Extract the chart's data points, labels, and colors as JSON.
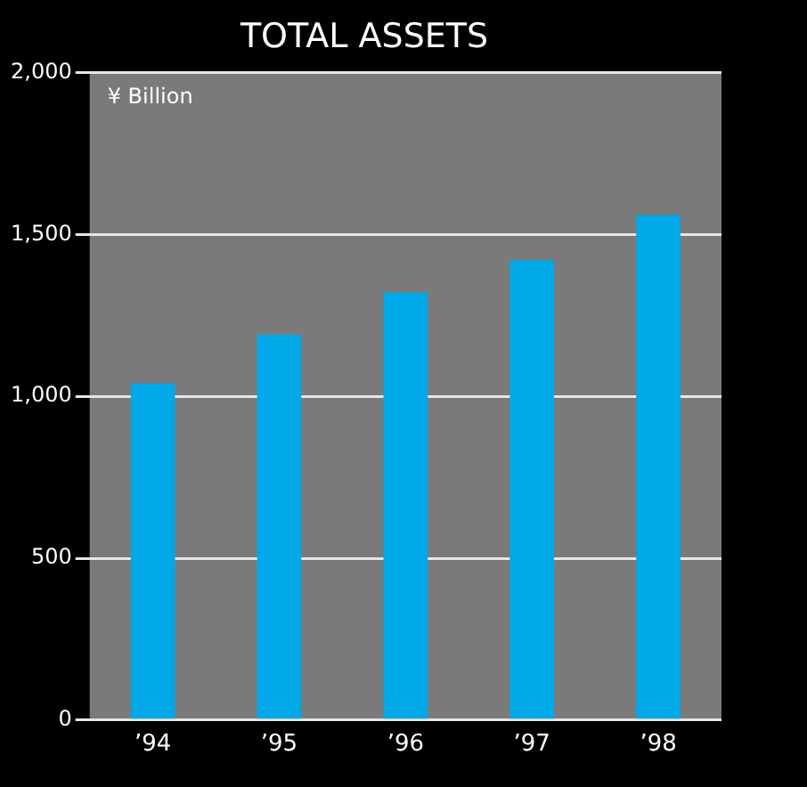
{
  "chart_data": {
    "type": "bar",
    "title": "TOTAL ASSETS",
    "ylabel": "¥ Billion",
    "categories": [
      "’94",
      "’95",
      "’96",
      "’97",
      "’98"
    ],
    "values": [
      1040,
      1190,
      1320,
      1420,
      1560
    ],
    "color": "#00a8e8",
    "ylim": [
      0,
      2000
    ],
    "yticks": [
      {
        "value": 0,
        "label": "0"
      },
      {
        "value": 500,
        "label": "500"
      },
      {
        "value": 1000,
        "label": "1,000"
      },
      {
        "value": 1500,
        "label": "1,500"
      },
      {
        "value": 2000,
        "label": "2,000"
      }
    ],
    "grid": "y",
    "legend": false
  }
}
